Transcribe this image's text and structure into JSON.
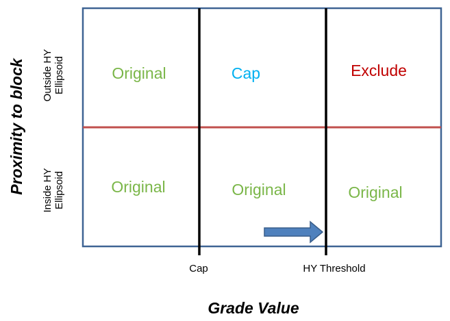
{
  "axes": {
    "x_label": "Grade Value",
    "y_label": "Proximity to block",
    "x_ticks": [
      "Cap",
      "HY Threshold"
    ],
    "y_rows": [
      {
        "line1": "Outside HY",
        "line2": "Ellipsoid"
      },
      {
        "line1": "Inside HY",
        "line2": "Ellipsoid"
      }
    ]
  },
  "cells": {
    "top": [
      "Original",
      "Cap",
      "Exclude"
    ],
    "bottom": [
      "Original",
      "Original",
      "Original"
    ]
  },
  "colors": {
    "border": "#3e6393",
    "divider_horizontal": "#c0504d",
    "divider_vertical": "#000000",
    "original": "#7ab648",
    "cap": "#00b0f0",
    "exclude": "#c00000",
    "arrow_fill": "#4f81bd",
    "arrow_stroke": "#385d8a"
  },
  "arrow": {
    "direction": "right"
  }
}
